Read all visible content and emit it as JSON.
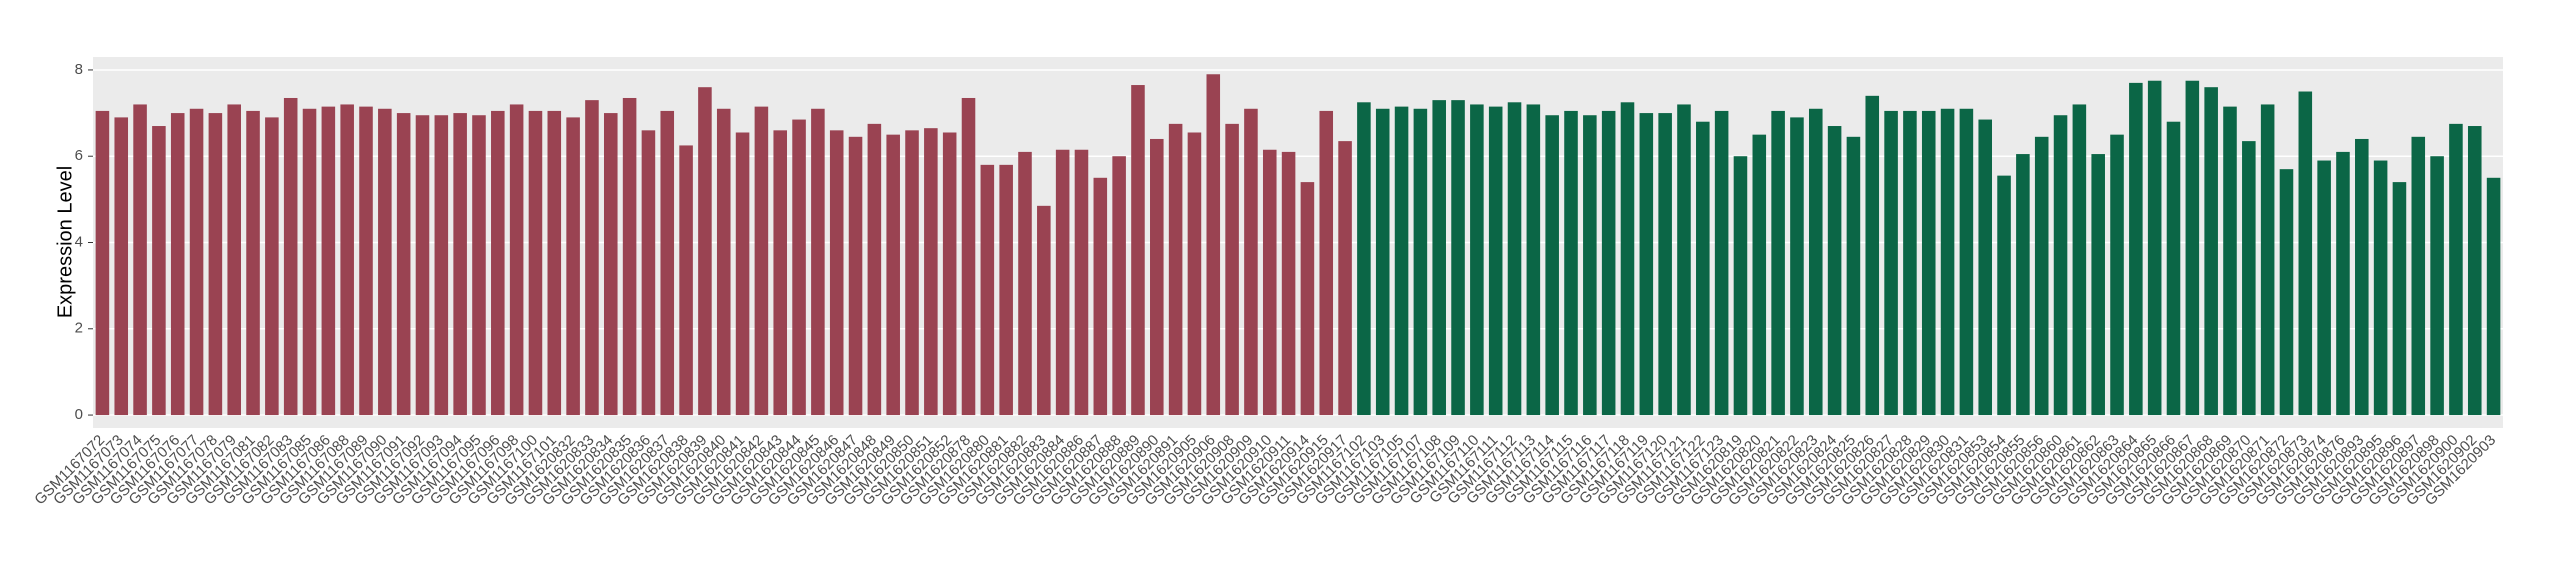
{
  "chart_data": {
    "type": "bar",
    "y_label": "Expression Level",
    "categories": [
      "GSM1167072",
      "GSM1167073",
      "GSM1167074",
      "GSM1167075",
      "GSM1167076",
      "GSM1167077",
      "GSM1167078",
      "GSM1167079",
      "GSM1167081",
      "GSM1167082",
      "GSM1167083",
      "GSM1167085",
      "GSM1167086",
      "GSM1167088",
      "GSM1167089",
      "GSM1167090",
      "GSM1167091",
      "GSM1167092",
      "GSM1167093",
      "GSM1167094",
      "GSM1167095",
      "GSM1167096",
      "GSM1167098",
      "GSM1167100",
      "GSM1167101",
      "GSM1620832",
      "GSM1620833",
      "GSM1620834",
      "GSM1620835",
      "GSM1620836",
      "GSM1620837",
      "GSM1620838",
      "GSM1620839",
      "GSM1620840",
      "GSM1620841",
      "GSM1620842",
      "GSM1620843",
      "GSM1620844",
      "GSM1620845",
      "GSM1620846",
      "GSM1620847",
      "GSM1620848",
      "GSM1620849",
      "GSM1620850",
      "GSM1620851",
      "GSM1620852",
      "GSM1620878",
      "GSM1620880",
      "GSM1620881",
      "GSM1620882",
      "GSM1620883",
      "GSM1620884",
      "GSM1620886",
      "GSM1620887",
      "GSM1620888",
      "GSM1620889",
      "GSM1620890",
      "GSM1620891",
      "GSM1620905",
      "GSM1620906",
      "GSM1620908",
      "GSM1620909",
      "GSM1620910",
      "GSM1620911",
      "GSM1620914",
      "GSM1620915",
      "GSM1620917",
      "GSM1167102",
      "GSM1167103",
      "GSM1167105",
      "GSM1167107",
      "GSM1167108",
      "GSM1167109",
      "GSM1167110",
      "GSM1167111",
      "GSM1167112",
      "GSM1167113",
      "GSM1167114",
      "GSM1167115",
      "GSM1167116",
      "GSM1167117",
      "GSM1167118",
      "GSM1167119",
      "GSM1167120",
      "GSM1167121",
      "GSM1167122",
      "GSM1167123",
      "GSM1620819",
      "GSM1620820",
      "GSM1620821",
      "GSM1620822",
      "GSM1620823",
      "GSM1620824",
      "GSM1620825",
      "GSM1620826",
      "GSM1620827",
      "GSM1620828",
      "GSM1620829",
      "GSM1620830",
      "GSM1620831",
      "GSM1620853",
      "GSM1620854",
      "GSM1620855",
      "GSM1620856",
      "GSM1620860",
      "GSM1620861",
      "GSM1620862",
      "GSM1620863",
      "GSM1620864",
      "GSM1620865",
      "GSM1620866",
      "GSM1620867",
      "GSM1620868",
      "GSM1620869",
      "GSM1620870",
      "GSM1620871",
      "GSM1620872",
      "GSM1620873",
      "GSM1620874",
      "GSM1620876",
      "GSM1620893",
      "GSM1620895",
      "GSM1620896",
      "GSM1620897",
      "GSM1620898",
      "GSM1620900",
      "GSM1620902",
      "GSM1620903"
    ],
    "values": [
      7.05,
      6.9,
      7.2,
      6.7,
      7.0,
      7.1,
      7.0,
      7.2,
      7.05,
      6.9,
      7.35,
      7.1,
      7.15,
      7.2,
      7.15,
      7.1,
      7.0,
      6.95,
      6.95,
      7.0,
      6.95,
      7.05,
      7.2,
      7.05,
      7.05,
      6.9,
      7.3,
      7.0,
      7.35,
      6.6,
      7.05,
      6.25,
      7.6,
      7.1,
      6.55,
      7.15,
      6.6,
      6.85,
      7.1,
      6.6,
      6.45,
      6.75,
      6.5,
      6.6,
      6.65,
      6.55,
      7.35,
      5.8,
      5.8,
      6.1,
      4.85,
      6.15,
      6.15,
      5.5,
      6.0,
      7.65,
      6.4,
      6.75,
      6.55,
      7.9,
      6.75,
      7.1,
      6.15,
      6.1,
      5.4,
      7.05,
      6.35,
      7.25,
      7.1,
      7.15,
      7.1,
      7.3,
      7.3,
      7.2,
      7.15,
      7.25,
      7.2,
      6.95,
      7.05,
      6.95,
      7.05,
      7.25,
      7.0,
      7.0,
      7.2,
      6.8,
      7.05,
      6.0,
      6.5,
      7.05,
      6.9,
      7.1,
      6.7,
      6.45,
      7.4,
      7.05,
      7.05,
      7.05,
      7.1,
      7.1,
      6.85,
      5.55,
      6.05,
      6.45,
      6.95,
      7.2,
      6.05,
      6.5,
      7.7,
      7.75,
      6.8,
      7.75,
      7.6,
      7.15,
      6.35,
      7.2,
      5.7,
      7.5,
      5.9,
      6.1,
      6.4,
      5.9,
      5.4,
      6.45,
      6.0,
      6.75,
      6.7,
      5.5
    ],
    "colors": [
      "#9a4352",
      "#9a4352",
      "#9a4352",
      "#9a4352",
      "#9a4352",
      "#9a4352",
      "#9a4352",
      "#9a4352",
      "#9a4352",
      "#9a4352",
      "#9a4352",
      "#9a4352",
      "#9a4352",
      "#9a4352",
      "#9a4352",
      "#9a4352",
      "#9a4352",
      "#9a4352",
      "#9a4352",
      "#9a4352",
      "#9a4352",
      "#9a4352",
      "#9a4352",
      "#9a4352",
      "#9a4352",
      "#9a4352",
      "#9a4352",
      "#9a4352",
      "#9a4352",
      "#9a4352",
      "#9a4352",
      "#9a4352",
      "#9a4352",
      "#9a4352",
      "#9a4352",
      "#9a4352",
      "#9a4352",
      "#9a4352",
      "#9a4352",
      "#9a4352",
      "#9a4352",
      "#9a4352",
      "#9a4352",
      "#9a4352",
      "#9a4352",
      "#9a4352",
      "#9a4352",
      "#9a4352",
      "#9a4352",
      "#9a4352",
      "#9a4352",
      "#9a4352",
      "#9a4352",
      "#9a4352",
      "#9a4352",
      "#9a4352",
      "#9a4352",
      "#9a4352",
      "#9a4352",
      "#9a4352",
      "#9a4352",
      "#9a4352",
      "#9a4352",
      "#9a4352",
      "#9a4352",
      "#9a4352",
      "#9a4352",
      "#0b6646",
      "#0b6646",
      "#0b6646",
      "#0b6646",
      "#0b6646",
      "#0b6646",
      "#0b6646",
      "#0b6646",
      "#0b6646",
      "#0b6646",
      "#0b6646",
      "#0b6646",
      "#0b6646",
      "#0b6646",
      "#0b6646",
      "#0b6646",
      "#0b6646",
      "#0b6646",
      "#0b6646",
      "#0b6646",
      "#0b6646",
      "#0b6646",
      "#0b6646",
      "#0b6646",
      "#0b6646",
      "#0b6646",
      "#0b6646",
      "#0b6646",
      "#0b6646",
      "#0b6646",
      "#0b6646",
      "#0b6646",
      "#0b6646",
      "#0b6646",
      "#0b6646",
      "#0b6646",
      "#0b6646",
      "#0b6646",
      "#0b6646",
      "#0b6646",
      "#0b6646",
      "#0b6646",
      "#0b6646",
      "#0b6646",
      "#0b6646",
      "#0b6646",
      "#0b6646",
      "#0b6646",
      "#0b6646",
      "#0b6646",
      "#0b6646",
      "#0b6646",
      "#0b6646",
      "#0b6646",
      "#0b6646",
      "#0b6646",
      "#0b6646",
      "#0b6646",
      "#0b6646",
      "#0b6646",
      "#0b6646"
    ],
    "ylim": [
      -0.3,
      8.3
    ],
    "yticks": [
      0,
      2,
      4,
      6,
      8
    ],
    "grid": true
  }
}
